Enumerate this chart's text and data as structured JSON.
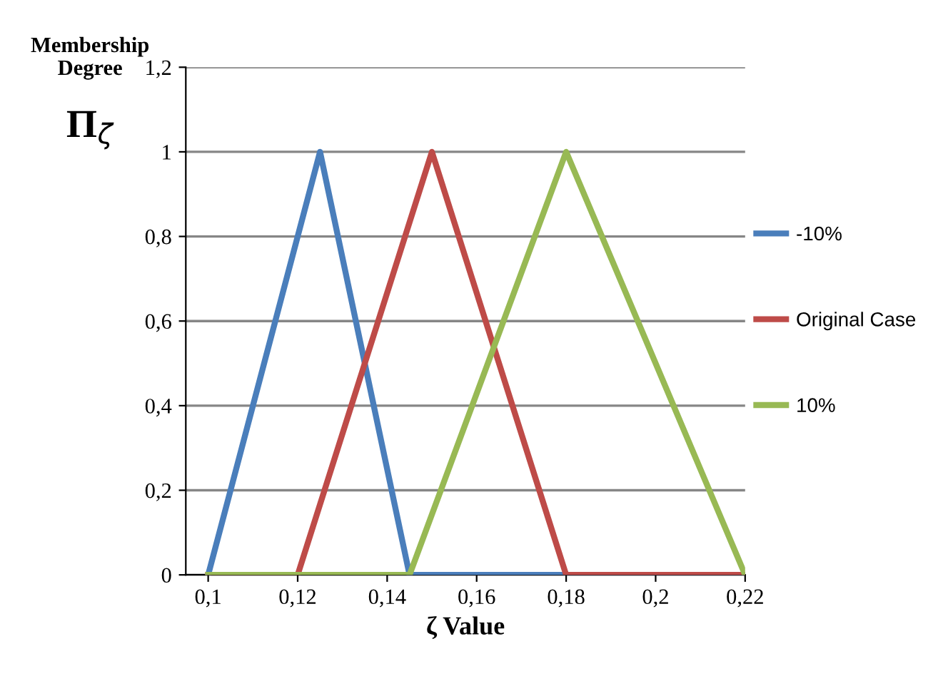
{
  "chart_data": {
    "type": "line",
    "xlabel": "ζ Value",
    "ylabel": "Membership Degree",
    "annotations": [
      "Π$_{ζ}$"
    ],
    "series": [
      {
        "name": "-10%",
        "color": "#4a7ebb",
        "x": [
          0.1,
          0.125,
          0.145,
          0.22
        ],
        "values": [
          0,
          1,
          0,
          0
        ]
      },
      {
        "name": "Original Case",
        "color": "#be4b48",
        "x": [
          0.1,
          0.12,
          0.15,
          0.18,
          0.22
        ],
        "values": [
          0,
          0,
          1,
          0,
          0
        ]
      },
      {
        "name": "10%",
        "color": "#98b954",
        "x": [
          0.1,
          0.145,
          0.18,
          0.22
        ],
        "values": [
          0,
          0,
          1,
          0
        ]
      }
    ],
    "xlim": [
      0.095,
      0.22
    ],
    "xticks": [
      {
        "value": 0.1,
        "label": "0,1"
      },
      {
        "value": 0.12,
        "label": "0,12"
      },
      {
        "value": 0.14,
        "label": "0,14"
      },
      {
        "value": 0.16,
        "label": "0,16"
      },
      {
        "value": 0.18,
        "label": "0,18"
      },
      {
        "value": 0.2,
        "label": "0,2"
      },
      {
        "value": 0.22,
        "label": "0,22"
      }
    ],
    "ylim": [
      0,
      1.2
    ],
    "yticks": [
      0,
      {
        "value": 0.2,
        "label": "0,2"
      },
      {
        "value": 0.4,
        "label": "0,4"
      },
      {
        "value": 0.6,
        "label": "0,6"
      },
      {
        "value": 0.8,
        "label": "0,8"
      },
      1,
      {
        "value": 1.2,
        "label": "1,2"
      }
    ],
    "grid": "y",
    "legend": "right",
    "marker": "none",
    "line_style": "solid"
  }
}
